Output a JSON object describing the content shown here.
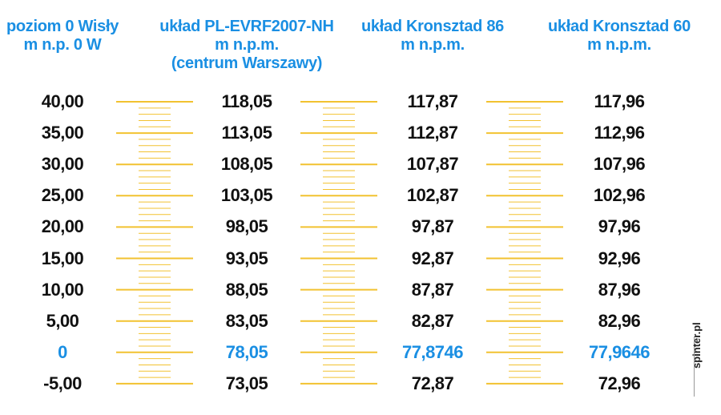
{
  "table": {
    "headers": [
      [
        "poziom 0 Wisły",
        "m n.p. 0 W"
      ],
      [
        "układ PL-EVRF2007-NH",
        "m n.p.m.",
        "(centrum Warszawy)"
      ],
      [
        "układ Kronsztad 86",
        "m n.p.m."
      ],
      [
        "układ Kronsztad 60",
        "m n.p.m."
      ]
    ],
    "rows": [
      [
        "40,00",
        "118,05",
        "117,87",
        "117,96"
      ],
      [
        "35,00",
        "113,05",
        "112,87",
        "112,96"
      ],
      [
        "30,00",
        "108,05",
        "107,87",
        "107,96"
      ],
      [
        "25,00",
        "103,05",
        "102,87",
        "102,96"
      ],
      [
        "20,00",
        "98,05",
        "97,87",
        "97,96"
      ],
      [
        "15,00",
        "93,05",
        "92,87",
        "92,96"
      ],
      [
        "10,00",
        "88,05",
        "87,87",
        "87,96"
      ],
      [
        "5,00",
        "83,05",
        "82,87",
        "82,96"
      ],
      [
        "0",
        "78,05",
        "77,8746",
        "77,9646"
      ],
      [
        "-5,00",
        "73,05",
        "72,87",
        "72,96"
      ]
    ],
    "highlighted_row": 8,
    "highlight_color": "#1a8fe3"
  },
  "watermark": "spinter.pl"
}
